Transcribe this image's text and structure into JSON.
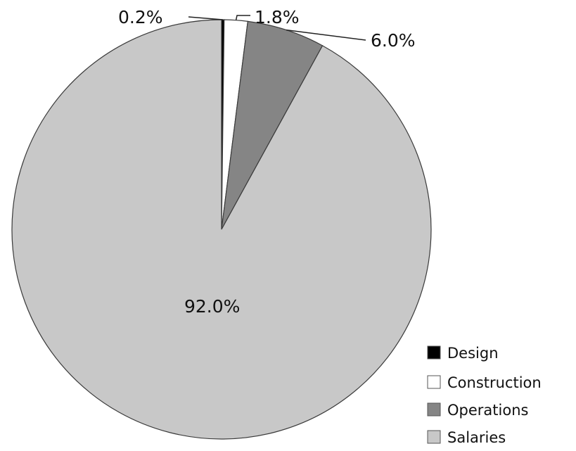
{
  "chart_data": {
    "type": "pie",
    "title": "",
    "categories": [
      "Design",
      "Construction",
      "Operations",
      "Salaries"
    ],
    "values": [
      0.2,
      1.8,
      6.0,
      92.0
    ],
    "data_labels": [
      "0.2%",
      "1.8%",
      "6.0%",
      "92.0%"
    ],
    "colors": [
      "#000000",
      "#ffffff",
      "#858585",
      "#c8c8c8"
    ],
    "start_angle": "12 o'clock",
    "direction": "clockwise",
    "legend": {
      "position": "bottom-right",
      "entries": [
        "Design",
        "Construction",
        "Operations",
        "Salaries"
      ]
    }
  }
}
